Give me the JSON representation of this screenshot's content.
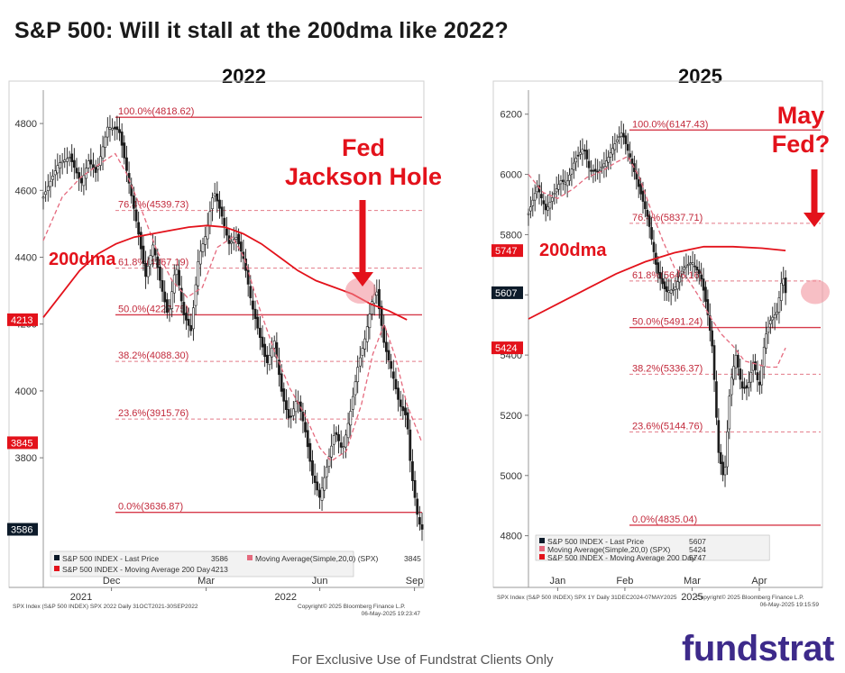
{
  "header": {
    "title": "S&P 500: Will it stall at the 200dma like 2022?"
  },
  "footer": {
    "disclaimer": "For Exclusive Use of Fundstrat Clients Only",
    "logo_text": "fundstrat"
  },
  "colors": {
    "red": "#e3121b",
    "pink": "#e56a7e",
    "candle": "#1b1b1b",
    "axis_badge": "#0d1b2a"
  },
  "chart_data": [
    {
      "id": "left",
      "type": "line",
      "title": "2022",
      "ylim": [
        3520,
        4900
      ],
      "yticks": [
        3800,
        4000,
        4200,
        4400,
        4600,
        4800
      ],
      "xticks": [
        {
          "label": "Dec",
          "x": 0.18
        },
        {
          "label": "Mar",
          "x": 0.43
        },
        {
          "label": "Jun",
          "x": 0.73
        },
        {
          "label": "Sep",
          "x": 0.98
        }
      ],
      "xyears": [
        {
          "label": "2021",
          "x": 0.1
        },
        {
          "label": "2022",
          "x": 0.64
        }
      ],
      "badges": [
        {
          "label": "4213",
          "value": 4213,
          "color": "#e3121b"
        },
        {
          "label": "3845",
          "value": 3845,
          "color": "#e3121b"
        },
        {
          "label": "3586",
          "value": 3586,
          "color": "#0d1b2a"
        }
      ],
      "fib_levels": [
        {
          "label": "100.0%(4818.62)",
          "value": 4818.62,
          "solid": true
        },
        {
          "label": "76.4%(4539.73)",
          "value": 4539.73,
          "solid": false
        },
        {
          "label": "61.8%(4367.19)",
          "value": 4367.19,
          "solid": false
        },
        {
          "label": "50.0%(4227.75)",
          "value": 4227.75,
          "solid": true
        },
        {
          "label": "38.2%(4088.30)",
          "value": 4088.3,
          "solid": false
        },
        {
          "label": "23.6%(3915.76)",
          "value": 3915.76,
          "solid": false
        },
        {
          "label": "0.0%(3636.87)",
          "value": 3636.87,
          "solid": true
        }
      ],
      "series": [
        {
          "name": "S&P 500 INDEX - Last Price",
          "role": "price",
          "points": [
            [
              0.0,
              4580
            ],
            [
              0.04,
              4680
            ],
            [
              0.07,
              4700
            ],
            [
              0.1,
              4620
            ],
            [
              0.12,
              4690
            ],
            [
              0.14,
              4650
            ],
            [
              0.17,
              4790
            ],
            [
              0.2,
              4780
            ],
            [
              0.23,
              4600
            ],
            [
              0.25,
              4480
            ],
            [
              0.27,
              4340
            ],
            [
              0.29,
              4440
            ],
            [
              0.31,
              4320
            ],
            [
              0.33,
              4220
            ],
            [
              0.35,
              4380
            ],
            [
              0.37,
              4230
            ],
            [
              0.39,
              4180
            ],
            [
              0.41,
              4400
            ],
            [
              0.43,
              4470
            ],
            [
              0.45,
              4600
            ],
            [
              0.47,
              4530
            ],
            [
              0.49,
              4440
            ],
            [
              0.51,
              4460
            ],
            [
              0.53,
              4390
            ],
            [
              0.55,
              4260
            ],
            [
              0.57,
              4170
            ],
            [
              0.59,
              4080
            ],
            [
              0.61,
              4150
            ],
            [
              0.63,
              3990
            ],
            [
              0.65,
              3910
            ],
            [
              0.67,
              3980
            ],
            [
              0.69,
              3890
            ],
            [
              0.71,
              3750
            ],
            [
              0.73,
              3680
            ],
            [
              0.75,
              3780
            ],
            [
              0.77,
              3880
            ],
            [
              0.79,
              3820
            ],
            [
              0.81,
              3930
            ],
            [
              0.83,
              4070
            ],
            [
              0.85,
              4160
            ],
            [
              0.87,
              4280
            ],
            [
              0.88,
              4300
            ],
            [
              0.9,
              4140
            ],
            [
              0.92,
              4060
            ],
            [
              0.94,
              3960
            ],
            [
              0.96,
              3920
            ],
            [
              0.97,
              3770
            ],
            [
              0.99,
              3610
            ],
            [
              1.0,
              3586
            ]
          ]
        },
        {
          "name": "Moving Average(Simple,20,0) (SPX)",
          "role": "ma20",
          "last": "3845",
          "points": [
            [
              0.0,
              4450
            ],
            [
              0.05,
              4580
            ],
            [
              0.1,
              4640
            ],
            [
              0.15,
              4680
            ],
            [
              0.19,
              4710
            ],
            [
              0.22,
              4650
            ],
            [
              0.26,
              4540
            ],
            [
              0.3,
              4420
            ],
            [
              0.34,
              4330
            ],
            [
              0.38,
              4280
            ],
            [
              0.42,
              4310
            ],
            [
              0.46,
              4430
            ],
            [
              0.5,
              4460
            ],
            [
              0.53,
              4400
            ],
            [
              0.57,
              4250
            ],
            [
              0.61,
              4120
            ],
            [
              0.65,
              4010
            ],
            [
              0.69,
              3930
            ],
            [
              0.73,
              3830
            ],
            [
              0.76,
              3790
            ],
            [
              0.8,
              3820
            ],
            [
              0.84,
              3960
            ],
            [
              0.87,
              4110
            ],
            [
              0.9,
              4200
            ],
            [
              0.93,
              4100
            ],
            [
              0.96,
              3960
            ],
            [
              1.0,
              3845
            ]
          ]
        },
        {
          "name": "S&P 500 INDEX - Moving Average 200 Day",
          "role": "ma200",
          "last": "4213",
          "points": [
            [
              0.0,
              4220
            ],
            [
              0.05,
              4290
            ],
            [
              0.1,
              4360
            ],
            [
              0.15,
              4410
            ],
            [
              0.2,
              4440
            ],
            [
              0.25,
              4460
            ],
            [
              0.3,
              4470
            ],
            [
              0.35,
              4480
            ],
            [
              0.4,
              4490
            ],
            [
              0.45,
              4495
            ],
            [
              0.5,
              4490
            ],
            [
              0.55,
              4470
            ],
            [
              0.6,
              4440
            ],
            [
              0.65,
              4400
            ],
            [
              0.7,
              4360
            ],
            [
              0.75,
              4330
            ],
            [
              0.8,
              4310
            ],
            [
              0.85,
              4290
            ],
            [
              0.9,
              4260
            ],
            [
              0.95,
              4240
            ],
            [
              1.0,
              4213
            ]
          ]
        }
      ],
      "legend": [
        {
          "text": "S&P 500 INDEX - Last Price",
          "value": "3586",
          "swatch": "#0d1b2a"
        },
        {
          "text": "Moving Average(Simple,20,0) (SPX)",
          "value": "3845",
          "swatch": "#e56a7e"
        },
        {
          "text": "S&P 500 INDEX - Moving Average 200 Day",
          "value": "4213",
          "swatch": "#e3121b"
        }
      ],
      "footer_left": "SPX Index (S&P 500 INDEX) SPX 2022  Daily 31OCT2021-30SEP2022",
      "footer_copy": "Copyright© 2025 Bloomberg Finance L.P.",
      "footer_date": "06-May-2025 19:23:47",
      "annotations": {
        "ma_label": "200dma",
        "callout_line1": "Fed",
        "callout_line2": "Jackson Hole"
      }
    },
    {
      "id": "right",
      "type": "line",
      "title": "2025",
      "ylim": [
        4760,
        6280
      ],
      "yticks": [
        4800,
        5000,
        5200,
        5400,
        5600,
        5800,
        6000,
        6200
      ],
      "xticks": [
        {
          "label": "Jan",
          "x": 0.1
        },
        {
          "label": "Feb",
          "x": 0.33
        },
        {
          "label": "Mar",
          "x": 0.56
        },
        {
          "label": "Apr",
          "x": 0.79
        }
      ],
      "xyears": [
        {
          "label": "2025",
          "x": 0.56
        }
      ],
      "badges": [
        {
          "label": "5747",
          "value": 5747,
          "color": "#e3121b"
        },
        {
          "label": "5607",
          "value": 5607,
          "color": "#0d1b2a"
        },
        {
          "label": "5424",
          "value": 5424,
          "color": "#e3121b"
        }
      ],
      "fib_levels": [
        {
          "label": "100.0%(6147.43)",
          "value": 6147.43,
          "solid": true
        },
        {
          "label": "76.4%(5837.71)",
          "value": 5837.71,
          "solid": false
        },
        {
          "label": "61.8%(5646.16)",
          "value": 5646.16,
          "solid": false
        },
        {
          "label": "50.0%(5491.24)",
          "value": 5491.24,
          "solid": true
        },
        {
          "label": "38.2%(5336.37)",
          "value": 5336.37,
          "solid": false
        },
        {
          "label": "23.6%(5144.76)",
          "value": 5144.76,
          "solid": false
        },
        {
          "label": "0.0%(4835.04)",
          "value": 4835.04,
          "solid": true
        }
      ],
      "series": [
        {
          "name": "S&P 500 INDEX - Last Price",
          "role": "price",
          "points": [
            [
              0.0,
              5870
            ],
            [
              0.03,
              5960
            ],
            [
              0.06,
              5880
            ],
            [
              0.09,
              5940
            ],
            [
              0.11,
              5980
            ],
            [
              0.13,
              5970
            ],
            [
              0.16,
              6050
            ],
            [
              0.19,
              6090
            ],
            [
              0.21,
              6010
            ],
            [
              0.24,
              6010
            ],
            [
              0.27,
              6050
            ],
            [
              0.3,
              6110
            ],
            [
              0.32,
              6140
            ],
            [
              0.35,
              6050
            ],
            [
              0.38,
              5950
            ],
            [
              0.41,
              5850
            ],
            [
              0.44,
              5680
            ],
            [
              0.47,
              5610
            ],
            [
              0.5,
              5620
            ],
            [
              0.53,
              5690
            ],
            [
              0.56,
              5710
            ],
            [
              0.59,
              5660
            ],
            [
              0.61,
              5560
            ],
            [
              0.63,
              5420
            ],
            [
              0.65,
              5080
            ],
            [
              0.67,
              4980
            ],
            [
              0.69,
              5300
            ],
            [
              0.71,
              5400
            ],
            [
              0.73,
              5290
            ],
            [
              0.75,
              5290
            ],
            [
              0.77,
              5380
            ],
            [
              0.79,
              5290
            ],
            [
              0.81,
              5460
            ],
            [
              0.83,
              5520
            ],
            [
              0.85,
              5540
            ],
            [
              0.87,
              5670
            ],
            [
              0.88,
              5607
            ]
          ]
        },
        {
          "name": "Moving Average(Simple,20,0) (SPX)",
          "role": "ma20",
          "last": "5424",
          "points": [
            [
              0.0,
              6000
            ],
            [
              0.05,
              5940
            ],
            [
              0.1,
              5920
            ],
            [
              0.15,
              5950
            ],
            [
              0.2,
              5990
            ],
            [
              0.25,
              6010
            ],
            [
              0.3,
              6040
            ],
            [
              0.34,
              6060
            ],
            [
              0.38,
              5990
            ],
            [
              0.42,
              5880
            ],
            [
              0.46,
              5780
            ],
            [
              0.5,
              5690
            ],
            [
              0.54,
              5660
            ],
            [
              0.58,
              5600
            ],
            [
              0.62,
              5530
            ],
            [
              0.66,
              5470
            ],
            [
              0.7,
              5430
            ],
            [
              0.74,
              5380
            ],
            [
              0.78,
              5370
            ],
            [
              0.82,
              5360
            ],
            [
              0.85,
              5360
            ],
            [
              0.88,
              5424
            ]
          ]
        },
        {
          "name": "S&P 500 INDEX - Moving Average 200 Day",
          "role": "ma200",
          "last": "5747",
          "points": [
            [
              0.0,
              5520
            ],
            [
              0.1,
              5570
            ],
            [
              0.2,
              5620
            ],
            [
              0.3,
              5670
            ],
            [
              0.4,
              5710
            ],
            [
              0.5,
              5740
            ],
            [
              0.6,
              5760
            ],
            [
              0.7,
              5760
            ],
            [
              0.8,
              5755
            ],
            [
              0.88,
              5747
            ]
          ]
        }
      ],
      "legend": [
        {
          "text": "S&P 500 INDEX - Last Price",
          "value": "5607",
          "swatch": "#0d1b2a"
        },
        {
          "text": "Moving Average(Simple,20,0) (SPX)",
          "value": "5424",
          "swatch": "#e56a7e"
        },
        {
          "text": "S&P 500 INDEX - Moving Average 200 Day",
          "value": "5747",
          "swatch": "#e3121b"
        }
      ],
      "footer_left": "SPX Index (S&P 500 INDEX) SPX 1Y  Daily 31DEC2024-07MAY2025",
      "footer_copy": "Copyright© 2025 Bloomberg Finance L.P.",
      "footer_date": "06-May-2025 19:15:59",
      "annotations": {
        "ma_label": "200dma",
        "callout_line1": "May",
        "callout_line2": "Fed?"
      }
    }
  ]
}
